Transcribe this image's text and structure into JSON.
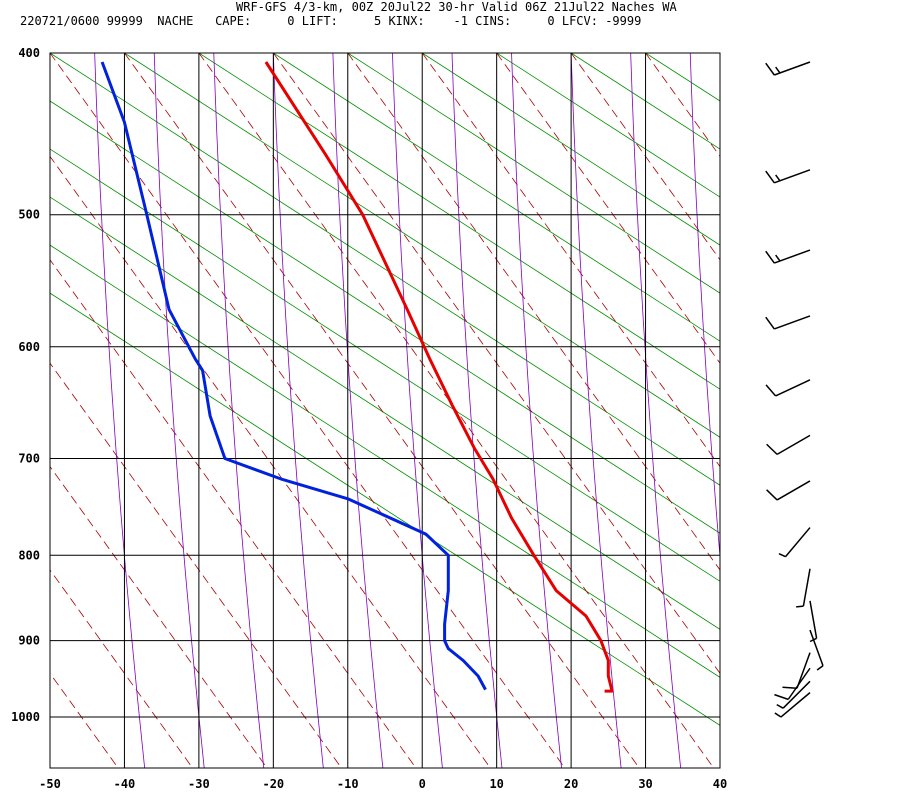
{
  "header": {
    "line1": "WRF-GFS 4/3-km, 00Z 20Jul22 30-hr Valid 06Z 21Jul22 Naches WA",
    "line2": "220721/0600 99999  NACHE   CAPE:     0 LIFT:     5 KINX:    -1 CINS:     0 LFCV: -9999"
  },
  "chart_data": {
    "type": "line",
    "title": "WRF-GFS 4/3-km, 00Z 20Jul22 30-hr Valid 06Z 21Jul22 Naches WA",
    "subtitle": "220721/0600 99999  NACHE   CAPE:     0 LIFT:     5 KINX:    -1 CINS:     0 LFCV: -9999",
    "xlabel": "",
    "ylabel": "",
    "xlim": [
      -50,
      40
    ],
    "ylim": [
      1050,
      400
    ],
    "y_scale": "log",
    "grid": true,
    "x_ticks": [
      -50,
      -40,
      -30,
      -20,
      -10,
      0,
      10,
      20,
      30,
      40
    ],
    "x_tick_labels": [
      "-50",
      "-40",
      "-30",
      "-20",
      "-10",
      "0",
      "10",
      "20",
      "30",
      "40"
    ],
    "y_ticks": [
      400,
      500,
      600,
      700,
      800,
      900,
      1000
    ],
    "y_tick_labels": [
      "400",
      "500",
      "600",
      "700",
      "800",
      "900",
      "1000"
    ],
    "series": [
      {
        "color": "#e60000",
        "points": [
          {
            "x": -21,
            "y": 405
          },
          {
            "x": -13,
            "y": 460
          },
          {
            "x": -8,
            "y": 500
          },
          {
            "x": -2,
            "y": 570
          },
          {
            "x": 1,
            "y": 610
          },
          {
            "x": 4,
            "y": 650
          },
          {
            "x": 7,
            "y": 690
          },
          {
            "x": 9.5,
            "y": 720
          },
          {
            "x": 12,
            "y": 760
          },
          {
            "x": 15,
            "y": 800
          },
          {
            "x": 18,
            "y": 840
          },
          {
            "x": 22,
            "y": 870
          },
          {
            "x": 24,
            "y": 900
          },
          {
            "x": 25,
            "y": 925
          },
          {
            "x": 25,
            "y": 945
          },
          {
            "x": 25.5,
            "y": 965
          },
          {
            "x": 24.5,
            "y": 965
          }
        ]
      },
      {
        "color": "#0022dd",
        "points": [
          {
            "x": -43,
            "y": 405
          },
          {
            "x": -40,
            "y": 440
          },
          {
            "x": -37,
            "y": 500
          },
          {
            "x": -34,
            "y": 570
          },
          {
            "x": -30.5,
            "y": 610
          },
          {
            "x": -29.5,
            "y": 620
          },
          {
            "x": -28.5,
            "y": 660
          },
          {
            "x": -26.5,
            "y": 700
          },
          {
            "x": -19,
            "y": 720
          },
          {
            "x": -10,
            "y": 740
          },
          {
            "x": 0.5,
            "y": 777
          },
          {
            "x": 3.5,
            "y": 800
          },
          {
            "x": 3.5,
            "y": 840
          },
          {
            "x": 3,
            "y": 880
          },
          {
            "x": 3,
            "y": 900
          },
          {
            "x": 3.5,
            "y": 910
          },
          {
            "x": 5.5,
            "y": 925
          },
          {
            "x": 7.5,
            "y": 945
          },
          {
            "x": 8.5,
            "y": 963
          }
        ]
      }
    ],
    "background_lines": {
      "isotherm_color": "#009000",
      "isotherm_start_x": [
        -100,
        -90,
        -80,
        -70,
        -60,
        -50,
        -40,
        -30,
        -20,
        -10,
        0,
        10,
        20,
        30,
        40
      ],
      "dry_adiabat_color": "#aa0000",
      "dry_adiabat_start_x": [
        -110,
        -100,
        -90,
        -80,
        -70,
        -60,
        -50,
        -40,
        -30,
        -20,
        -10,
        0,
        10,
        20,
        30,
        40,
        50
      ],
      "moist_adiabat_color": "#8000c0",
      "moist_adiabat_start_x": [
        -44,
        -36,
        -28,
        -20,
        -12,
        -4,
        4,
        12,
        20,
        28,
        36,
        44,
        52
      ]
    },
    "wind_barbs": [
      {
        "pressure": 405,
        "from_deg": 250,
        "speed_kt": 15
      },
      {
        "pressure": 470,
        "from_deg": 250,
        "speed_kt": 15
      },
      {
        "pressure": 525,
        "from_deg": 250,
        "speed_kt": 15
      },
      {
        "pressure": 575,
        "from_deg": 250,
        "speed_kt": 10
      },
      {
        "pressure": 628,
        "from_deg": 245,
        "speed_kt": 10
      },
      {
        "pressure": 678,
        "from_deg": 240,
        "speed_kt": 10
      },
      {
        "pressure": 722,
        "from_deg": 240,
        "speed_kt": 10
      },
      {
        "pressure": 770,
        "from_deg": 220,
        "speed_kt": 5
      },
      {
        "pressure": 815,
        "from_deg": 190,
        "speed_kt": 5
      },
      {
        "pressure": 852,
        "from_deg": 170,
        "speed_kt": 5
      },
      {
        "pressure": 887,
        "from_deg": 160,
        "speed_kt": 5
      },
      {
        "pressure": 915,
        "from_deg": 200,
        "speed_kt": 10
      },
      {
        "pressure": 935,
        "from_deg": 215,
        "speed_kt": 10
      },
      {
        "pressure": 952,
        "from_deg": 225,
        "speed_kt": 5
      },
      {
        "pressure": 967,
        "from_deg": 230,
        "speed_kt": 5
      }
    ]
  }
}
